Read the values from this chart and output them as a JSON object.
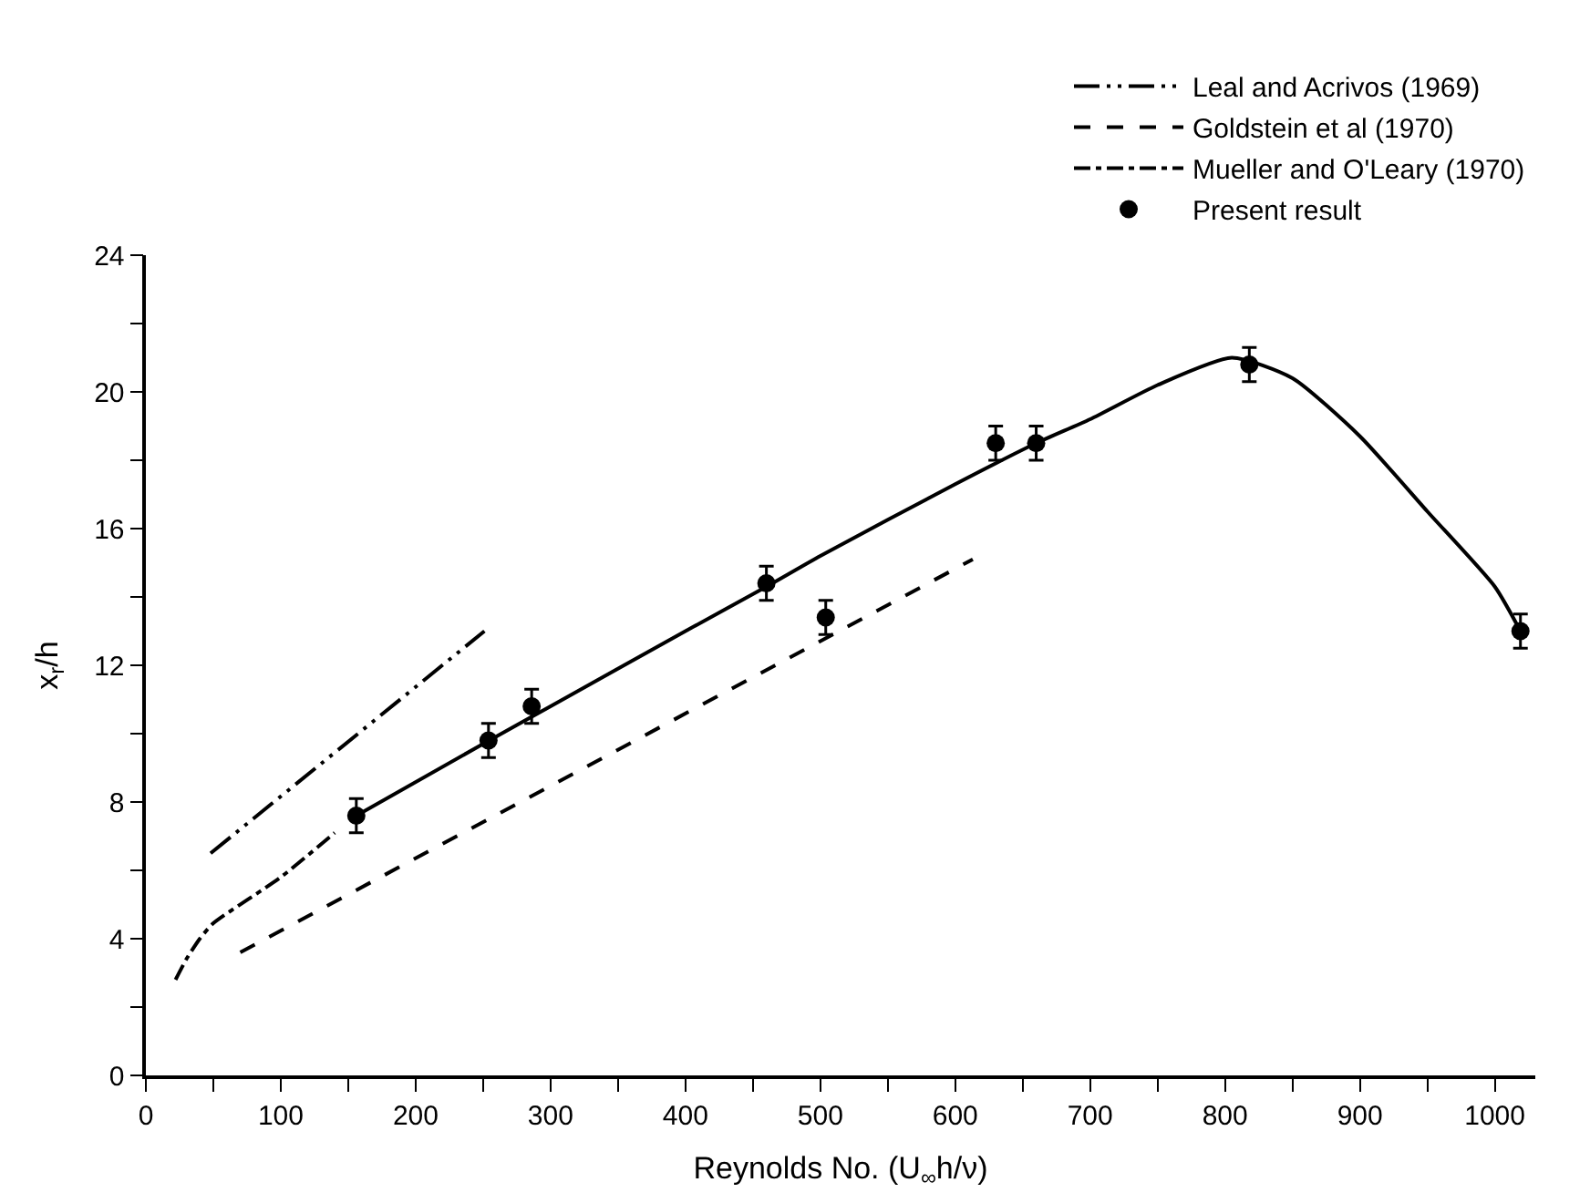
{
  "chart_data": {
    "type": "line",
    "xlabel": "Reynolds No. (U$_{∞}$h/ν)",
    "ylabel": "x$_{r}$/h",
    "xlim": [
      0,
      1030
    ],
    "ylim": [
      0,
      24
    ],
    "xticks": [
      0,
      {
        "value": 50,
        "label": null
      },
      100,
      {
        "value": 150,
        "label": null
      },
      200,
      {
        "value": 250,
        "label": null
      },
      300,
      {
        "value": 350,
        "label": null
      },
      400,
      {
        "value": 450,
        "label": null
      },
      500,
      {
        "value": 550,
        "label": null
      },
      600,
      {
        "value": 650,
        "label": null
      },
      700,
      {
        "value": 750,
        "label": null
      },
      800,
      {
        "value": 850,
        "label": null
      },
      900,
      {
        "value": 950,
        "label": null
      },
      1000
    ],
    "yticks": [
      0,
      {
        "value": 2,
        "label": null
      },
      4,
      {
        "value": 6,
        "label": null
      },
      8,
      {
        "value": 10,
        "label": null
      },
      12,
      {
        "value": 14,
        "label": null
      },
      16,
      {
        "value": 18,
        "label": null
      },
      20,
      {
        "value": 22,
        "label": null
      },
      24
    ],
    "legend": "top right",
    "series": [
      {
        "name": "Leal and Acrivos (1969)",
        "type": "line",
        "line_style": "dashdotdot",
        "color": "#000000",
        "x": [
          48,
          251
        ],
        "values": [
          6.5,
          13.0
        ]
      },
      {
        "name": "Goldstein et al (1970)",
        "type": "line",
        "line_style": "dashed",
        "color": "#000000",
        "x": [
          70,
          613
        ],
        "values": [
          3.6,
          15.1
        ]
      },
      {
        "name": "Mueller and O'Leary (1970)",
        "type": "line",
        "line_style": "dashdot",
        "color": "#000000",
        "x": [
          22,
          30,
          40,
          50,
          100,
          140
        ],
        "values": [
          2.8,
          3.4,
          4.0,
          4.45,
          5.8,
          7.1
        ]
      },
      {
        "name": "Present result",
        "type": "scatter",
        "marker": "circle",
        "color": "#000000",
        "x": [
          156,
          254,
          286,
          460,
          504,
          630,
          660,
          818,
          1019
        ],
        "values": [
          7.6,
          9.8,
          10.8,
          14.4,
          13.4,
          18.5,
          18.5,
          20.8,
          13.0
        ],
        "errors": [
          0.5,
          0.5,
          0.5,
          0.5,
          0.5,
          0.5,
          0.5,
          0.5,
          0.5
        ]
      },
      {
        "line_style": "solid",
        "color": "#000000",
        "x": [
          156,
          250,
          300,
          400,
          460,
          500,
          600,
          660,
          700,
          750,
          805,
          850,
          900,
          950,
          1000,
          1019
        ],
        "values": [
          7.6,
          9.7,
          10.8,
          13.0,
          14.3,
          15.2,
          17.3,
          18.5,
          19.2,
          20.2,
          21.0,
          20.4,
          18.7,
          16.5,
          14.3,
          13.0
        ]
      }
    ]
  }
}
